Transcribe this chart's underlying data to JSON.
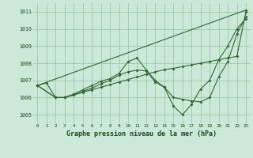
{
  "title": "Graphe pression niveau de la mer (hPa)",
  "background_color": "#cce8d8",
  "grid_color": "#99ccaa",
  "line_color": "#336633",
  "xlim": [
    -0.5,
    23.5
  ],
  "ylim": [
    1004.5,
    1011.5
  ],
  "yticks": [
    1005,
    1006,
    1007,
    1008,
    1009,
    1010,
    1011
  ],
  "xticks": [
    0,
    1,
    2,
    3,
    4,
    5,
    6,
    7,
    8,
    9,
    10,
    11,
    12,
    13,
    14,
    15,
    16,
    17,
    18,
    19,
    20,
    21,
    22,
    23
  ],
  "series": [
    {
      "x": [
        0,
        1,
        2,
        3,
        4,
        5,
        6,
        7,
        8,
        9,
        10,
        11,
        12,
        13,
        14,
        15,
        16,
        17,
        18,
        19,
        20,
        21,
        22,
        23
      ],
      "y": [
        1006.7,
        1006.85,
        1006.0,
        1006.0,
        1006.15,
        1006.3,
        1006.45,
        1006.6,
        1006.75,
        1006.9,
        1007.05,
        1007.2,
        1007.35,
        1007.5,
        1007.62,
        1007.7,
        1007.8,
        1007.9,
        1008.0,
        1008.1,
        1008.2,
        1008.3,
        1008.4,
        1011.0
      ]
    },
    {
      "x": [
        0,
        23
      ],
      "y": [
        1006.7,
        1011.1
      ]
    },
    {
      "x": [
        0,
        2,
        3,
        4,
        5,
        6,
        7,
        8,
        9,
        10,
        11,
        12,
        13,
        14,
        15,
        16,
        17,
        18,
        19,
        20,
        21,
        22,
        23
      ],
      "y": [
        1006.7,
        1006.0,
        1006.0,
        1006.2,
        1006.45,
        1006.7,
        1006.95,
        1007.1,
        1007.4,
        1008.1,
        1008.3,
        1007.6,
        1007.0,
        1006.6,
        1006.0,
        1005.9,
        1005.8,
        1005.75,
        1006.0,
        1007.2,
        1008.1,
        1009.7,
        1010.7
      ]
    },
    {
      "x": [
        0,
        2,
        3,
        4,
        5,
        6,
        7,
        8,
        9,
        10,
        11,
        12,
        13,
        14,
        15,
        16,
        17,
        18,
        19,
        20,
        21,
        22,
        23
      ],
      "y": [
        1006.7,
        1006.0,
        1006.0,
        1006.15,
        1006.35,
        1006.55,
        1006.8,
        1007.0,
        1007.3,
        1007.5,
        1007.6,
        1007.55,
        1006.9,
        1006.6,
        1005.5,
        1005.0,
        1005.6,
        1006.5,
        1007.0,
        1008.2,
        1009.0,
        1010.0,
        1010.6
      ]
    }
  ]
}
